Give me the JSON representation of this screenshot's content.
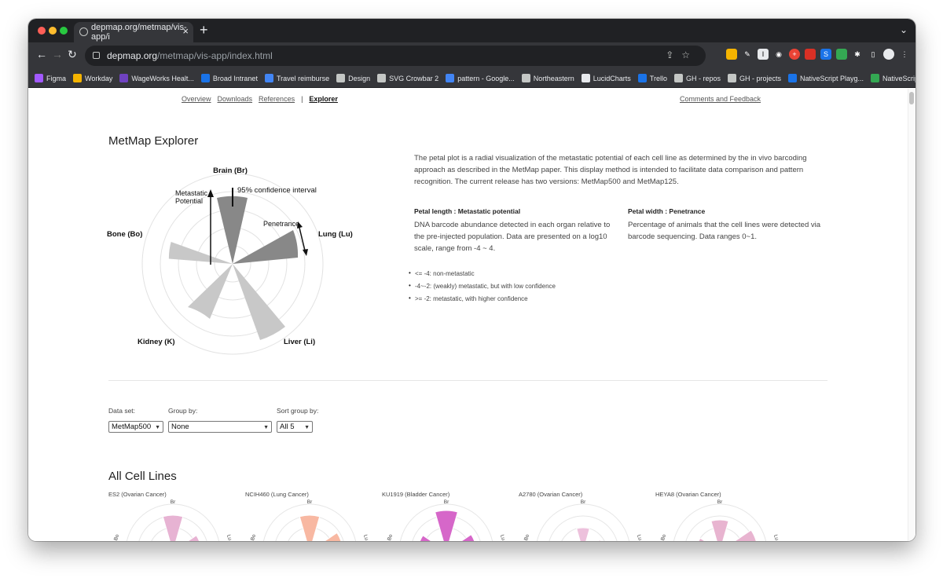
{
  "browser": {
    "tab_title": "depmap.org/metmap/vis-app/i",
    "url_host": "depmap.org",
    "url_path": "/metmap/vis-app/index.html",
    "bookmarks": [
      "Figma",
      "Workday",
      "WageWorks Healt...",
      "Broad Intranet",
      "Travel reimburse",
      "Design",
      "SVG Crowbar 2",
      "pattern - Google...",
      "Northeastern",
      "LucidCharts",
      "Trello",
      "GH - repos",
      "GH - projects",
      "NativeScript Playg...",
      "NativeScript Vue..."
    ],
    "bookmarks_more": "»",
    "colors": {
      "close": "#ff5f57",
      "minimize": "#febc2e",
      "maximize": "#28c840"
    }
  },
  "nav": {
    "items": [
      "Overview",
      "Downloads",
      "References"
    ],
    "separator": "|",
    "active": "Explorer",
    "feedback": "Comments and Feedback"
  },
  "explorer": {
    "title": "MetMap Explorer",
    "legend": {
      "organs": {
        "brain": "Brain (Br)",
        "lung": "Lung (Lu)",
        "liver": "Liver (Li)",
        "kidney": "Kidney (K)",
        "bone": "Bone (Bo)"
      },
      "ci_label": "95% confidence interval",
      "metastatic_label_1": "Metastatic",
      "metastatic_label_2": "Potential",
      "penetrance_label": "Penetrance"
    },
    "description": "The petal plot is a radial visualization of the metastatic potential of each cell line as determined by the in vivo barcoding approach as described in the MetMap paper. This display method is intended to facilitate data comparison and pattern recognition. The current release has two versions: MetMap500 and MetMap125.",
    "petal_length_heading": "Petal length : Metastatic potential",
    "petal_length_text": "DNA barcode abundance detected in each organ relative to the pre-injected population. Data are presented on a log10 scale, range from -4 ~ 4.",
    "petal_width_heading": "Petal width : Penetrance",
    "petal_width_text": "Percentage of animals that the cell lines were detected via barcode sequencing. Data ranges 0~1.",
    "bullets": [
      "<= -4: non-metastatic",
      "-4~-2: (weakly) metastatic, but with low confidence",
      ">= -2: metastatic, with higher confidence"
    ]
  },
  "controls": {
    "dataset_label": "Data set:",
    "dataset_value": "MetMap500",
    "group_label": "Group by:",
    "group_value": "None",
    "sort_label": "Sort group by:",
    "sort_value": "All 5"
  },
  "cell_lines": {
    "title": "All Cell Lines",
    "axis_labels": {
      "brain": "Br",
      "lung": "Lu",
      "bone": "Bo"
    },
    "items": [
      {
        "name": "ES2 (Ovarian Cancer)",
        "color": "#e7b3d3"
      },
      {
        "name": "NCIH460 (Lung Cancer)",
        "color": "#f8b8a2"
      },
      {
        "name": "KU1919 (Bladder Cancer)",
        "color": "#d667c9"
      },
      {
        "name": "A2780 (Ovarian Cancer)",
        "color": "#edc1dc"
      },
      {
        "name": "HEYA8 (Ovarian Cancer)",
        "color": "#e8b4d0"
      }
    ]
  }
}
